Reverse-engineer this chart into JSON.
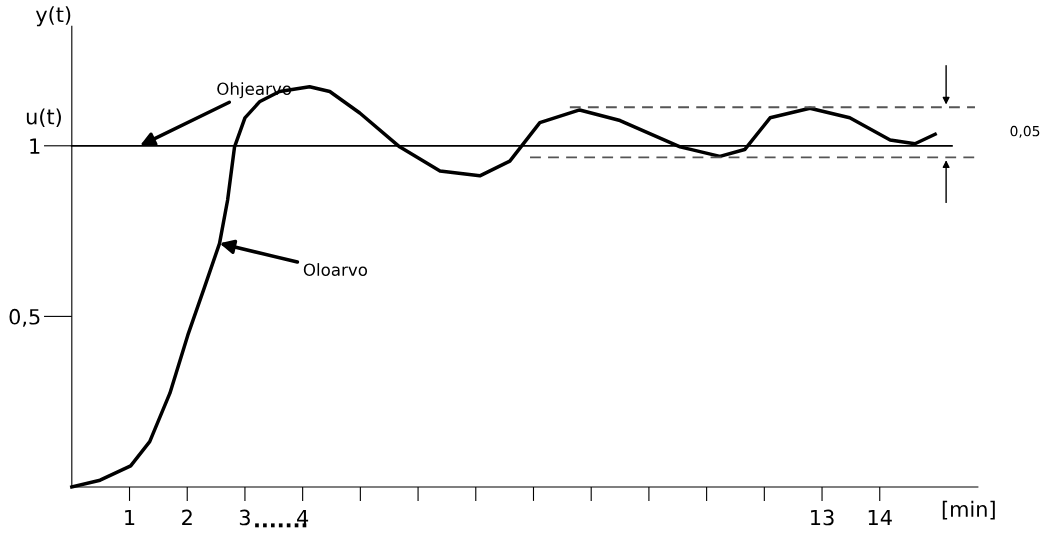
{
  "chart_data": {
    "type": "line",
    "ylabel": "y(t)",
    "xlabel": "[min]",
    "xlim": [
      0,
      15.7
    ],
    "ylim": [
      0,
      1.35
    ],
    "xticks": [
      {
        "value": 1,
        "label": "1"
      },
      {
        "value": 2,
        "label": "2"
      },
      {
        "value": 3,
        "label": "3"
      },
      {
        "value": 4,
        "label": "4"
      },
      {
        "value": 5,
        "label": null
      },
      {
        "value": 6,
        "label": null
      },
      {
        "value": 7,
        "label": null
      },
      {
        "value": 8,
        "label": null
      },
      {
        "value": 9,
        "label": null
      },
      {
        "value": 10,
        "label": null
      },
      {
        "value": 11,
        "label": null
      },
      {
        "value": 12,
        "label": null
      },
      {
        "value": 13,
        "label": "13"
      },
      {
        "value": 14,
        "label": "14"
      }
    ],
    "yticks": [
      {
        "value": 0.5,
        "label": "0,5"
      },
      {
        "value": 1,
        "label": "1"
      }
    ],
    "grid": false,
    "legend": false,
    "marker": "none",
    "series": [
      {
        "color": "#000000",
        "line_style": "solid",
        "x": [
          0,
          0.49,
          1.02,
          1.35,
          1.7,
          2.01,
          2.3,
          2.56,
          2.7,
          2.82,
          3.0,
          3.26,
          3.6,
          4.12,
          4.47,
          4.99,
          5.68,
          6.38,
          7.07,
          7.59,
          8.11,
          8.8,
          9.5,
          10.54,
          11.23,
          11.66,
          12.1,
          12.79,
          13.48,
          14.18,
          14.61,
          14.96
        ],
        "values": [
          0,
          0.02,
          0.062,
          0.133,
          0.275,
          0.445,
          0.586,
          0.714,
          0.841,
          0.997,
          1.082,
          1.13,
          1.159,
          1.173,
          1.159,
          1.096,
          0.997,
          0.926,
          0.912,
          0.955,
          1.068,
          1.105,
          1.074,
          0.997,
          0.969,
          0.989,
          1.082,
          1.11,
          1.082,
          1.017,
          1.006,
          1.034
        ]
      },
      {
        "name": "u(t)",
        "color": "#000000",
        "line_style": "solid",
        "x": [
          0,
          15.25
        ],
        "values": [
          1,
          1
        ]
      },
      {
        "color": "#555555",
        "line_style": "dashed",
        "x": [
          8.63,
          15.65
        ],
        "values": [
          1.113,
          1.113
        ]
      },
      {
        "color": "#555555",
        "line_style": "dashed",
        "x": [
          7.94,
          15.65
        ],
        "values": [
          0.966,
          0.966
        ]
      }
    ],
    "annotations": [
      {
        "text": "Ohjearvo",
        "x": 1.18,
        "y": 1
      },
      {
        "text": "Oloarvo",
        "x": 2.56,
        "y": 0.714
      },
      "0,05",
      "......."
    ]
  }
}
